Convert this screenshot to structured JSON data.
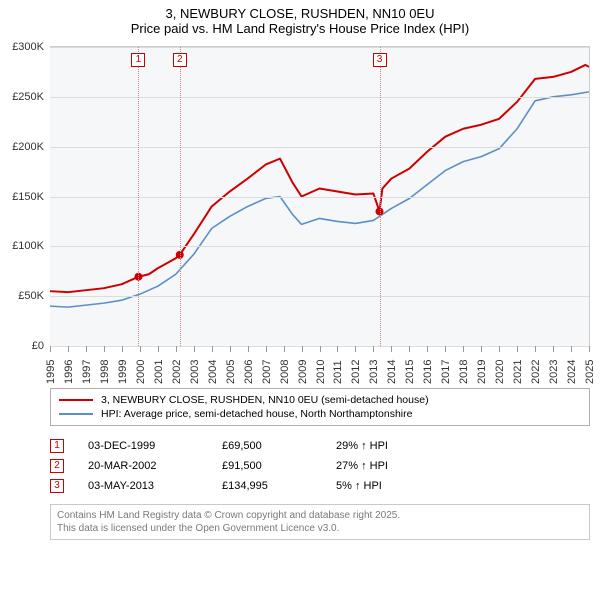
{
  "title": {
    "line1": "3, NEWBURY CLOSE, RUSHDEN, NN10 0EU",
    "line2": "Price paid vs. HM Land Registry's House Price Index (HPI)"
  },
  "chart": {
    "type": "line",
    "background_color": "#f6f7f8",
    "grid_color": "#dcdcdc",
    "y_axis": {
      "min": 0,
      "max": 300000,
      "ticks": [
        0,
        50000,
        100000,
        150000,
        200000,
        250000,
        300000
      ],
      "tick_labels": [
        "£0",
        "£50K",
        "£100K",
        "£150K",
        "£200K",
        "£250K",
        "£300K"
      ]
    },
    "x_axis": {
      "min": 1995,
      "max": 2025,
      "ticks": [
        1995,
        1996,
        1997,
        1998,
        1999,
        2000,
        2001,
        2002,
        2003,
        2004,
        2005,
        2006,
        2007,
        2008,
        2009,
        2010,
        2011,
        2012,
        2013,
        2014,
        2015,
        2016,
        2017,
        2018,
        2019,
        2020,
        2021,
        2022,
        2023,
        2024,
        2025
      ]
    },
    "series": [
      {
        "name": "price_paid",
        "label": "3, NEWBURY CLOSE, RUSHDEN, NN10 0EU (semi-detached house)",
        "color": "#cc0000",
        "line_width": 2,
        "points": [
          [
            1995,
            55000
          ],
          [
            1996,
            54000
          ],
          [
            1997,
            56000
          ],
          [
            1998,
            58000
          ],
          [
            1999,
            62000
          ],
          [
            1999.92,
            69500
          ],
          [
            2000.5,
            72000
          ],
          [
            2001,
            78000
          ],
          [
            2002,
            88000
          ],
          [
            2002.22,
            91500
          ],
          [
            2003,
            112000
          ],
          [
            2004,
            140000
          ],
          [
            2005,
            155000
          ],
          [
            2006,
            168000
          ],
          [
            2007,
            182000
          ],
          [
            2007.8,
            188000
          ],
          [
            2008.5,
            164000
          ],
          [
            2009,
            150000
          ],
          [
            2010,
            158000
          ],
          [
            2011,
            155000
          ],
          [
            2012,
            152000
          ],
          [
            2013,
            153000
          ],
          [
            2013.34,
            134995
          ],
          [
            2013.5,
            158000
          ],
          [
            2014,
            168000
          ],
          [
            2015,
            178000
          ],
          [
            2016,
            195000
          ],
          [
            2017,
            210000
          ],
          [
            2018,
            218000
          ],
          [
            2019,
            222000
          ],
          [
            2020,
            228000
          ],
          [
            2021,
            245000
          ],
          [
            2022,
            268000
          ],
          [
            2023,
            270000
          ],
          [
            2024,
            275000
          ],
          [
            2024.8,
            282000
          ],
          [
            2025,
            280000
          ]
        ]
      },
      {
        "name": "hpi",
        "label": "HPI: Average price, semi-detached house, North Northamptonshire",
        "color": "#5b8fc7",
        "line_width": 1.6,
        "points": [
          [
            1995,
            40000
          ],
          [
            1996,
            39000
          ],
          [
            1997,
            41000
          ],
          [
            1998,
            43000
          ],
          [
            1999,
            46000
          ],
          [
            2000,
            52000
          ],
          [
            2001,
            60000
          ],
          [
            2002,
            72000
          ],
          [
            2003,
            92000
          ],
          [
            2004,
            118000
          ],
          [
            2005,
            130000
          ],
          [
            2006,
            140000
          ],
          [
            2007,
            148000
          ],
          [
            2007.8,
            150000
          ],
          [
            2008.5,
            132000
          ],
          [
            2009,
            122000
          ],
          [
            2010,
            128000
          ],
          [
            2011,
            125000
          ],
          [
            2012,
            123000
          ],
          [
            2013,
            126000
          ],
          [
            2014,
            138000
          ],
          [
            2015,
            148000
          ],
          [
            2016,
            162000
          ],
          [
            2017,
            176000
          ],
          [
            2018,
            185000
          ],
          [
            2019,
            190000
          ],
          [
            2020,
            198000
          ],
          [
            2021,
            218000
          ],
          [
            2022,
            246000
          ],
          [
            2023,
            250000
          ],
          [
            2024,
            252000
          ],
          [
            2025,
            255000
          ]
        ]
      }
    ],
    "sale_markers": [
      {
        "idx": "1",
        "year": 1999.92,
        "price": 69500
      },
      {
        "idx": "2",
        "year": 2002.22,
        "price": 91500
      },
      {
        "idx": "3",
        "year": 2013.34,
        "price": 134995
      }
    ]
  },
  "legend": {
    "items": [
      {
        "color": "#cc0000",
        "label": "3, NEWBURY CLOSE, RUSHDEN, NN10 0EU (semi-detached house)"
      },
      {
        "color": "#5b8fc7",
        "label": "HPI: Average price, semi-detached house, North Northamptonshire"
      }
    ]
  },
  "transactions": [
    {
      "idx": "1",
      "date": "03-DEC-1999",
      "price": "£69,500",
      "diff": "29% ↑ HPI"
    },
    {
      "idx": "2",
      "date": "20-MAR-2002",
      "price": "£91,500",
      "diff": "27% ↑ HPI"
    },
    {
      "idx": "3",
      "date": "03-MAY-2013",
      "price": "£134,995",
      "diff": "5% ↑ HPI"
    }
  ],
  "footer": {
    "line1": "Contains HM Land Registry data © Crown copyright and database right 2025.",
    "line2": "This data is licensed under the Open Government Licence v3.0."
  }
}
